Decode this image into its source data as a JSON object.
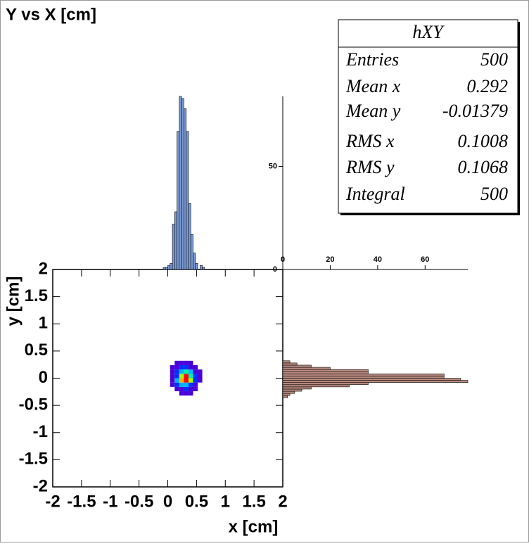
{
  "chart_data": [
    {
      "type": "heatmap",
      "title": "Y vs X [cm]",
      "xlabel": "x [cm]",
      "ylabel": "y [cm]",
      "xlim": [
        -2,
        2
      ],
      "ylim": [
        -2,
        2
      ],
      "xticks": [
        -2,
        -1.5,
        -1,
        -0.5,
        0,
        0.5,
        1,
        1.5,
        2
      ],
      "yticks": [
        -2,
        -1.5,
        -1,
        -0.5,
        0,
        0.5,
        1,
        1.5,
        2
      ],
      "x_bins": [
        0.04,
        0.12,
        0.2,
        0.28,
        0.36,
        0.44,
        0.52,
        0.6
      ],
      "y_bins": [
        -0.32,
        -0.24,
        -0.16,
        -0.08,
        0,
        0.08,
        0.16,
        0.24,
        0.32
      ],
      "z": [
        [
          0,
          0,
          1,
          1,
          1,
          0,
          0
        ],
        [
          0,
          2,
          4,
          5,
          3,
          1,
          0
        ],
        [
          1,
          5,
          12,
          14,
          9,
          3,
          0
        ],
        [
          3,
          10,
          26,
          34,
          20,
          7,
          2
        ],
        [
          3,
          9,
          24,
          30,
          18,
          6,
          1
        ],
        [
          2,
          6,
          14,
          16,
          10,
          3,
          1
        ],
        [
          1,
          3,
          6,
          5,
          3,
          1,
          0
        ],
        [
          0,
          1,
          2,
          1,
          1,
          0,
          0
        ]
      ],
      "zlim": [
        0,
        34
      ],
      "colors": [
        "#4b00d8",
        "#0030ff",
        "#00b4ff",
        "#00f0a0",
        "#a0ff00",
        "#ffb000",
        "#ff0000"
      ]
    },
    {
      "type": "histogram",
      "orientation": "vertical",
      "color": "#7b9bd6",
      "bins": [
        -0.08,
        -0.04,
        0,
        0.04,
        0.08,
        0.12,
        0.16,
        0.2,
        0.24,
        0.28,
        0.32,
        0.36,
        0.4,
        0.44,
        0.48,
        0.52,
        0.56,
        0.6,
        0.64
      ],
      "values": [
        1,
        1,
        2,
        3,
        22,
        28,
        67,
        84,
        83,
        78,
        67,
        32,
        17,
        8,
        3,
        0,
        2,
        1
      ],
      "xlim": [
        -2,
        2
      ],
      "ylim": [
        0,
        84
      ],
      "yticks": [
        0,
        50
      ]
    },
    {
      "type": "histogram",
      "orientation": "horizontal",
      "color": "#b88a7f",
      "bins": [
        -0.36,
        -0.32,
        -0.28,
        -0.24,
        -0.2,
        -0.16,
        -0.12,
        -0.08,
        -0.04,
        0,
        0.04,
        0.08,
        0.12,
        0.16,
        0.2,
        0.24,
        0.28,
        0.32
      ],
      "values": [
        2,
        3,
        5,
        8,
        12,
        28,
        36,
        78,
        75,
        68,
        68,
        36,
        36,
        20,
        12,
        6,
        3
      ],
      "xlim": [
        0,
        78
      ],
      "xticks": [
        0,
        20,
        40,
        60
      ],
      "ylim": [
        -2,
        2
      ]
    }
  ],
  "stats_box": {
    "title": "hXY",
    "rows": [
      {
        "name": "Entries",
        "value": 500
      },
      {
        "name": "Mean x",
        "value": 0.292
      },
      {
        "name": "Mean y",
        "value": -0.01379
      },
      {
        "name": "RMS x",
        "value": 0.1008
      },
      {
        "name": "RMS y",
        "value": 0.1068
      },
      {
        "name": "Integral",
        "value": 500
      }
    ]
  }
}
